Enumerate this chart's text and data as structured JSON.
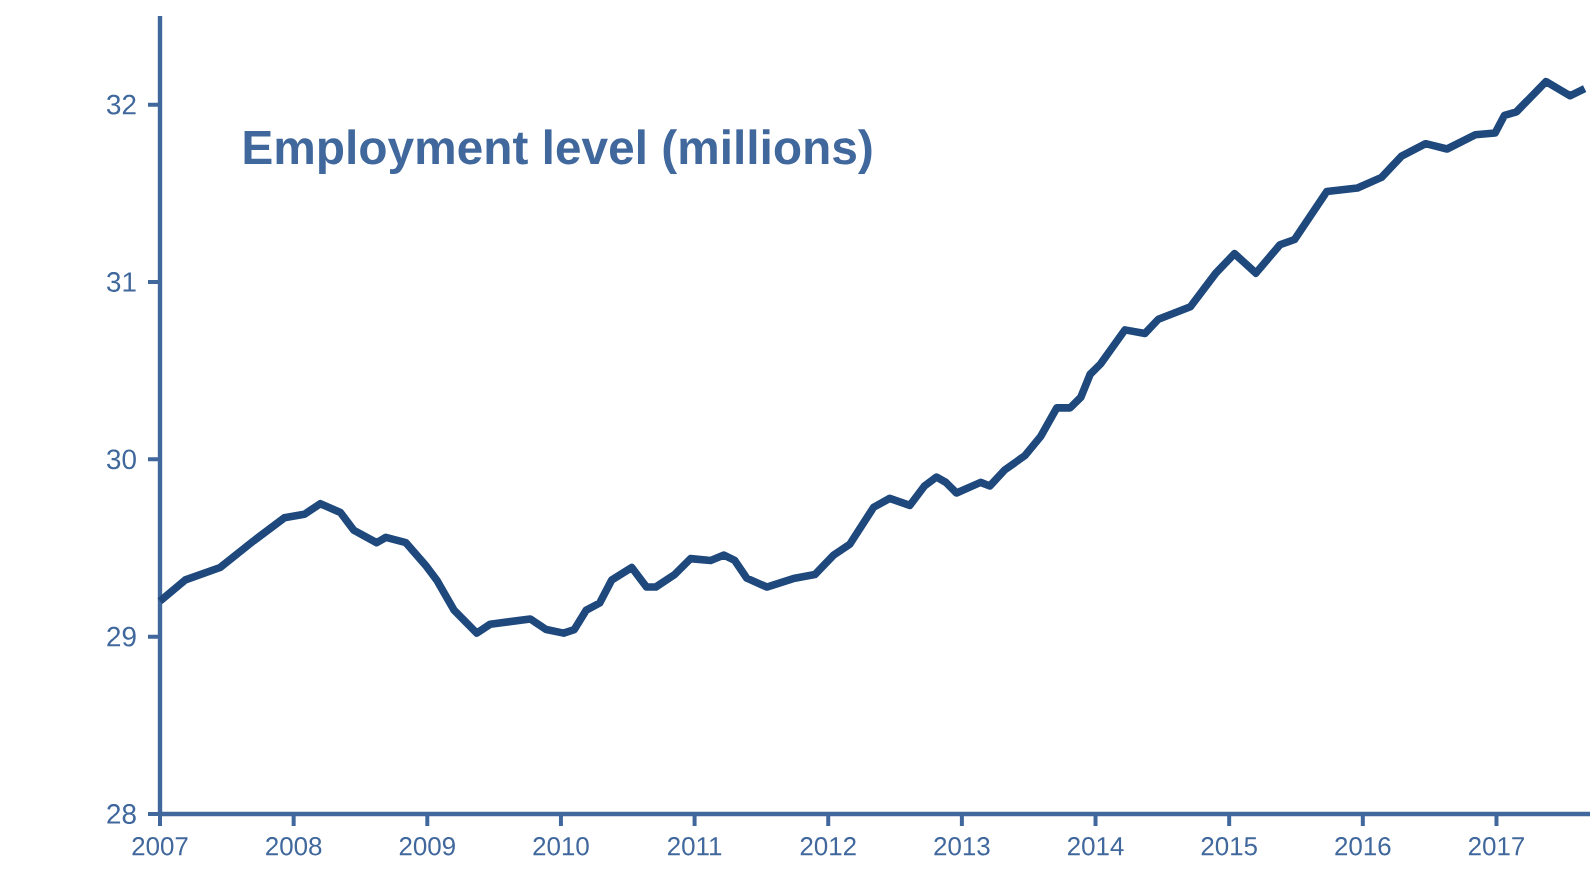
{
  "chart_data": {
    "type": "line",
    "title": "Employment level (millions)",
    "xlim": [
      2007,
      2017.7
    ],
    "ylim": [
      28,
      32.5
    ],
    "xticks": [
      2007,
      2008,
      2009,
      2010,
      2011,
      2012,
      2013,
      2014,
      2015,
      2016,
      2017
    ],
    "yticks": [
      28,
      29,
      30,
      31,
      32
    ],
    "grid": false,
    "marker": "none",
    "line_style": "solid",
    "x": [
      2007.0,
      2007.19,
      2007.45,
      2007.7,
      2007.93,
      2008.08,
      2008.2,
      2008.35,
      2008.45,
      2008.62,
      2008.69,
      2008.84,
      2008.99,
      2009.07,
      2009.2,
      2009.37,
      2009.47,
      2009.77,
      2009.89,
      2010.02,
      2010.1,
      2010.19,
      2010.29,
      2010.38,
      2010.53,
      2010.64,
      2010.71,
      2010.85,
      2010.97,
      2011.12,
      2011.22,
      2011.3,
      2011.39,
      2011.54,
      2011.75,
      2011.9,
      2012.04,
      2012.16,
      2012.34,
      2012.46,
      2012.61,
      2012.72,
      2012.81,
      2012.88,
      2012.96,
      2013.14,
      2013.21,
      2013.32,
      2013.47,
      2013.59,
      2013.71,
      2013.81,
      2013.89,
      2013.96,
      2014.04,
      2014.22,
      2014.37,
      2014.47,
      2014.71,
      2014.9,
      2015.04,
      2015.2,
      2015.38,
      2015.49,
      2015.73,
      2015.96,
      2016.14,
      2016.29,
      2016.47,
      2016.63,
      2016.84,
      2016.99,
      2017.06,
      2017.15,
      2017.37,
      2017.55,
      2017.66
    ],
    "series": [
      {
        "color": "#1f497d",
        "values": [
          29.2,
          29.32,
          29.39,
          29.54,
          29.67,
          29.69,
          29.75,
          29.7,
          29.6,
          29.53,
          29.56,
          29.53,
          29.4,
          29.32,
          29.15,
          29.02,
          29.07,
          29.1,
          29.04,
          29.02,
          29.04,
          29.15,
          29.19,
          29.32,
          29.39,
          29.28,
          29.28,
          29.35,
          29.44,
          29.43,
          29.46,
          29.43,
          29.33,
          29.28,
          29.33,
          29.35,
          29.46,
          29.52,
          29.73,
          29.78,
          29.74,
          29.85,
          29.9,
          29.87,
          29.81,
          29.87,
          29.85,
          29.94,
          30.02,
          30.13,
          30.29,
          30.29,
          30.35,
          30.48,
          30.54,
          30.73,
          30.71,
          30.79,
          30.86,
          31.05,
          31.16,
          31.05,
          31.21,
          31.24,
          31.51,
          31.53,
          31.59,
          31.71,
          31.78,
          31.75,
          31.83,
          31.84,
          31.94,
          31.96,
          32.13,
          32.05,
          32.09
        ]
      }
    ]
  }
}
